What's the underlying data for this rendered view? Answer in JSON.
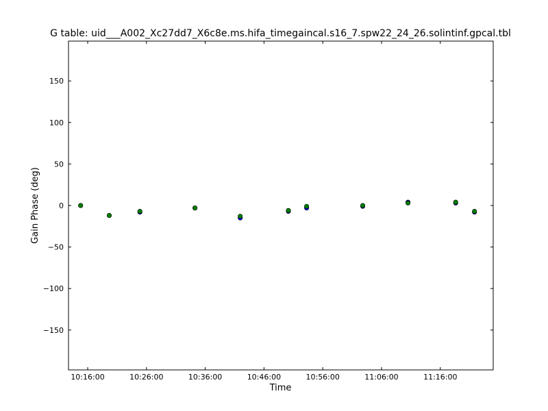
{
  "chart_data": {
    "type": "scatter",
    "title": "G table: uid___A002_Xc27dd7_X6c8e.ms.hifa_timegaincal.s16_7.spw22_24_26.solintinf.gpcal.tbl",
    "xlabel": "Time",
    "ylabel": "Gain Phase (deg)",
    "xlim": [
      "10:12:44",
      "11:25:00"
    ],
    "ylim": [
      -198,
      198
    ],
    "x_ticks": [
      "10:16:00",
      "10:26:00",
      "10:36:00",
      "10:46:00",
      "10:56:00",
      "11:06:00",
      "11:16:00"
    ],
    "y_ticks": [
      -150,
      -100,
      -50,
      0,
      50,
      100,
      150
    ],
    "y_tick_labels": [
      "−150",
      "−100",
      "−50",
      "0",
      "50",
      "100",
      "150"
    ],
    "grid": false,
    "legend": "none",
    "series": [
      {
        "color": "#0000ff",
        "x": [
          "10:14:48",
          "10:19:40",
          "10:24:53",
          "10:34:15",
          "10:41:57",
          "10:50:09",
          "10:53:15",
          "11:02:48",
          "11:10:30",
          "11:18:37",
          "11:21:49"
        ],
        "y": [
          0,
          -12,
          -8,
          -3,
          -15,
          -7,
          -3,
          -1,
          4,
          3,
          -8
        ]
      },
      {
        "color": "#008000",
        "x": [
          "10:14:48",
          "10:19:40",
          "10:24:53",
          "10:34:15",
          "10:41:57",
          "10:50:09",
          "10:53:15",
          "11:02:48",
          "11:10:30",
          "11:18:37",
          "11:21:49"
        ],
        "y": [
          0,
          -12,
          -7,
          -3,
          -13,
          -6,
          -1,
          0,
          3,
          4,
          -7
        ]
      }
    ]
  }
}
